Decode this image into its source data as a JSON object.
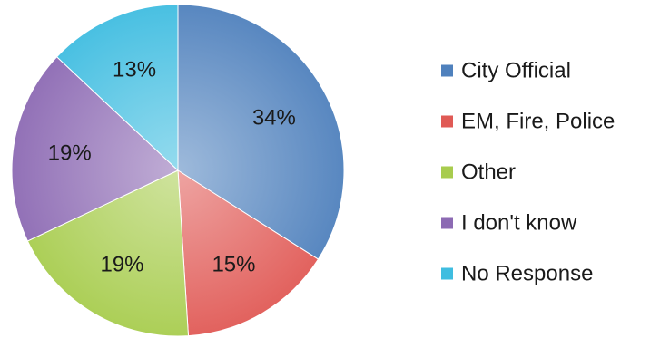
{
  "chart_data": {
    "type": "pie",
    "title": "",
    "legend_position": "right",
    "slices": [
      {
        "label": "City Official",
        "value": 34,
        "display": "34%",
        "color": "#4f81bd"
      },
      {
        "label": "EM, Fire, Police",
        "value": 15,
        "display": "15%",
        "color": "#e05a55"
      },
      {
        "label": "Other",
        "value": 19,
        "display": "19%",
        "color": "#a8cc4e"
      },
      {
        "label": "I don't know",
        "value": 19,
        "display": "19%",
        "color": "#8c6ab3"
      },
      {
        "label": "No Response",
        "value": 13,
        "display": "13%",
        "color": "#3fbde0"
      }
    ]
  }
}
